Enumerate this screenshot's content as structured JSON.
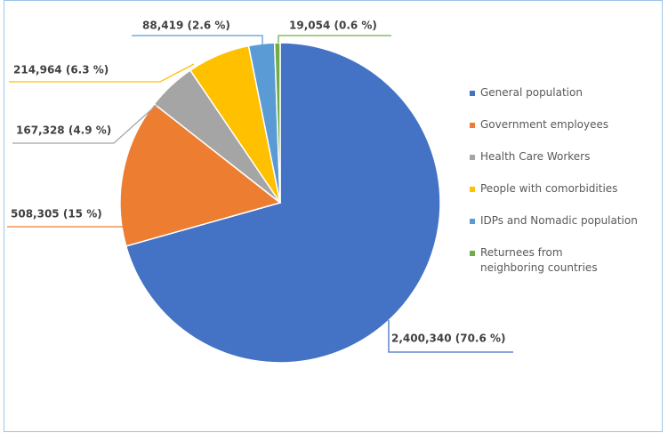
{
  "chart_data": {
    "type": "pie",
    "categories": [
      "General population",
      "Government employees",
      "Health Care Workers",
      "People with comorbidities",
      "IDPs and Nomadic population",
      "Returnees from neighboring countries"
    ],
    "values": [
      2400340,
      508305,
      167328,
      214964,
      88419,
      19054
    ],
    "value_labels": [
      "2,400,340 (70.6 %)",
      "508,305 (15 %)",
      "167,328 (4.9 %)",
      "214,964 (6.3 %)",
      "88,419 (2.6 %)",
      "19,054 (0.6 %)"
    ],
    "colors": [
      "#4472c4",
      "#ed7d31",
      "#a5a5a5",
      "#ffc000",
      "#5b9bd5",
      "#70ad47"
    ],
    "legend": "right"
  }
}
